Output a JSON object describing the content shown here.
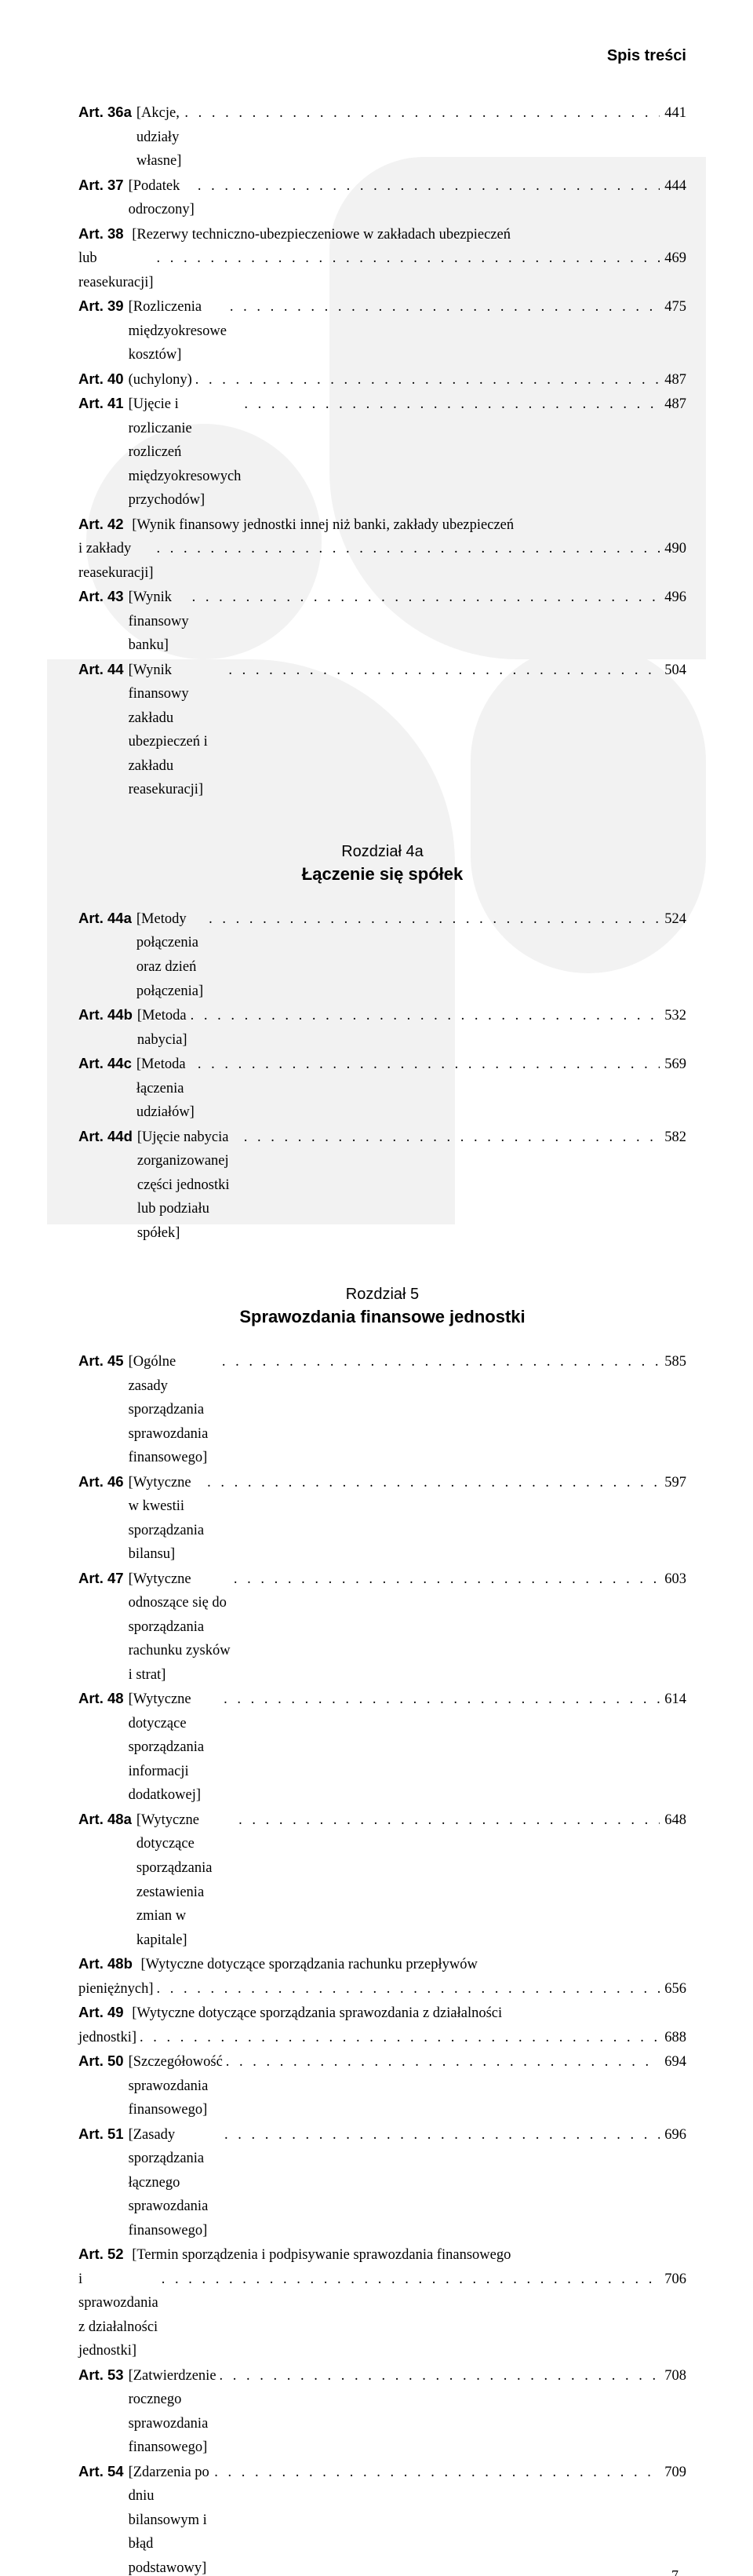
{
  "header": "Spis treści",
  "page_number": "7",
  "group1": [
    {
      "art": "Art. 36a",
      "title": "[Akcje, udziały własne]",
      "page": "441"
    },
    {
      "art": "Art. 37",
      "title": "[Podatek odroczony]",
      "page": "444"
    },
    {
      "art": "Art. 38",
      "multi": true,
      "line1": "[Rezerwy techniczno-ubezpieczeniowe w zakładach ubezpieczeń",
      "line2": "lub reasekuracji]",
      "page": "469"
    },
    {
      "art": "Art. 39",
      "title": "[Rozliczenia międzyokresowe kosztów]",
      "page": "475"
    },
    {
      "art": "Art. 40",
      "title": "(uchylony)",
      "page": "487"
    },
    {
      "art": "Art. 41",
      "title": "[Ujęcie i rozliczanie rozliczeń międzyokresowych przychodów]",
      "page": "487"
    },
    {
      "art": "Art. 42",
      "multi": true,
      "line1": "[Wynik finansowy jednostki innej niż banki, zakłady ubezpieczeń",
      "line2": "i zakłady reasekuracji]",
      "page": "490"
    },
    {
      "art": "Art. 43",
      "title": "[Wynik finansowy banku]",
      "page": "496"
    },
    {
      "art": "Art. 44",
      "title": "[Wynik finansowy zakładu ubezpieczeń i zakładu reasekuracji]",
      "page": "504"
    }
  ],
  "section_a": {
    "chap": "Rozdział 4a",
    "name": "Łączenie się spółek"
  },
  "group2": [
    {
      "art": "Art. 44a",
      "title": "[Metody połączenia oraz dzień połączenia]",
      "page": "524"
    },
    {
      "art": "Art. 44b",
      "title": "[Metoda nabycia]",
      "page": "532"
    },
    {
      "art": "Art. 44c",
      "title": "[Metoda łączenia udziałów]",
      "page": "569"
    },
    {
      "art": "Art. 44d",
      "title": "[Ujęcie nabycia zorganizowanej części jednostki lub podziału spółek]",
      "page": "582"
    }
  ],
  "section_b": {
    "chap": "Rozdział 5",
    "name": "Sprawozdania finansowe jednostki"
  },
  "group3": [
    {
      "art": "Art. 45",
      "title": "[Ogólne zasady sporządzania sprawozdania finansowego]",
      "page": "585"
    },
    {
      "art": "Art. 46",
      "title": "[Wytyczne w kwestii sporządzania bilansu]",
      "page": "597"
    },
    {
      "art": "Art. 47",
      "title": "[Wytyczne odnoszące się do sporządzania rachunku zysków i strat]",
      "page": "603"
    },
    {
      "art": "Art. 48",
      "title": "[Wytyczne dotyczące sporządzania informacji dodatkowej]",
      "page": "614"
    },
    {
      "art": "Art. 48a",
      "title": "[Wytyczne dotyczące sporządzania zestawienia zmian w kapitale]",
      "page": "648"
    },
    {
      "art": "Art. 48b",
      "multi": true,
      "line1": "[Wytyczne dotyczące sporządzania rachunku przepływów",
      "line2": "pieniężnych]",
      "page": "656"
    },
    {
      "art": "Art. 49",
      "multi": true,
      "line1": "[Wytyczne dotyczące sporządzania sprawozdania z działalności",
      "line2": "jednostki]",
      "page": "688"
    },
    {
      "art": "Art. 50",
      "title": "[Szczegółowość sprawozdania finansowego]",
      "page": "694"
    },
    {
      "art": "Art. 51",
      "title": "[Zasady sporządzania łącznego sprawozdania finansowego]",
      "page": "696"
    },
    {
      "art": "Art. 52",
      "multi": true,
      "line1": "[Termin sporządzenia i podpisywanie sprawozdania finansowego",
      "line2": "i sprawozdania z działalności jednostki]",
      "page": "706"
    },
    {
      "art": "Art. 53",
      "title": "[Zatwierdzenie rocznego sprawozdania finansowego]",
      "page": "708"
    },
    {
      "art": "Art. 54",
      "title": "[Zdarzenia po dniu bilansowym i błąd podstawowy]",
      "page": "709"
    }
  ],
  "colors": {
    "bg": "#ffffff",
    "text": "#000000",
    "watermark": "#f2f2f2"
  },
  "fontsize": {
    "body": 18.5,
    "header": 20,
    "chap": 20,
    "name": 22
  }
}
